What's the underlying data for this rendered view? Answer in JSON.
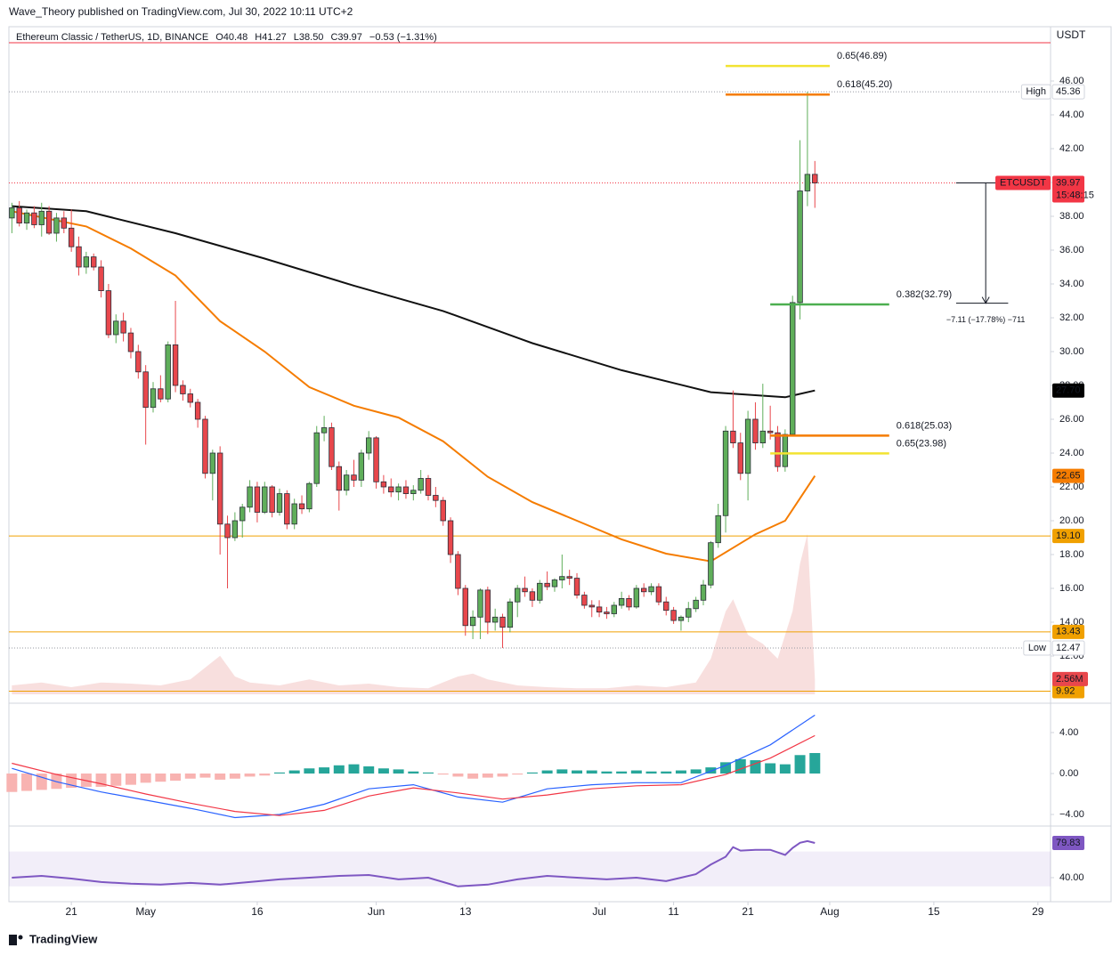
{
  "chart_data": {
    "type": "candlestick",
    "header": "Wave_Theory published on TradingView.com, Jul 30, 2022 10:11 UTC+2",
    "title": "Ethereum Classic / TetherUS, 1D, BINANCE",
    "ohlc_legend": [
      "O40.48",
      "H41.27",
      "L38.50",
      "C39.97",
      "−0.53 (−1.31%)"
    ],
    "currency": "USDT",
    "brand": "TradingView",
    "grid": false,
    "xlim": [
      -0.4,
      139.7
    ],
    "xticks": [
      {
        "value": 8,
        "label": "21"
      },
      {
        "value": 18,
        "label": "May"
      },
      {
        "value": 33,
        "label": "16"
      },
      {
        "value": 49,
        "label": "Jun"
      },
      {
        "value": 61,
        "label": "13"
      },
      {
        "value": 79,
        "label": "Jul"
      },
      {
        "value": 89,
        "label": "11"
      },
      {
        "value": 99,
        "label": "21"
      },
      {
        "value": 110,
        "label": "Aug"
      },
      {
        "value": 124,
        "label": "15"
      },
      {
        "value": 138,
        "label": "29"
      }
    ],
    "ylim": [
      9.21,
      49.21
    ],
    "yticks": [
      {
        "value": 12,
        "label": "12.00"
      },
      {
        "value": 14,
        "label": "14.00"
      },
      {
        "value": 16,
        "label": "16.00"
      },
      {
        "value": 18,
        "label": "18.00"
      },
      {
        "value": 20,
        "label": "20.00"
      },
      {
        "value": 22,
        "label": "22.00"
      },
      {
        "value": 24,
        "label": "24.00"
      },
      {
        "value": 26,
        "label": "26.00"
      },
      {
        "value": 28,
        "label": "28.00"
      },
      {
        "value": 30,
        "label": "30.00"
      },
      {
        "value": 32,
        "label": "32.00"
      },
      {
        "value": 34,
        "label": "34.00"
      },
      {
        "value": 36,
        "label": "36.00"
      },
      {
        "value": 38,
        "label": "38.00"
      },
      {
        "value": 40,
        "label": "40.00"
      },
      {
        "value": 42,
        "label": "42.00"
      },
      {
        "value": 44,
        "label": "44.00"
      },
      {
        "value": 46,
        "label": "46.00"
      }
    ],
    "up_color": "#5fae5a",
    "down_color": "#e8474c",
    "candles": [
      [
        37.9,
        38.8,
        37.0,
        38.5
      ],
      [
        38.5,
        38.9,
        37.4,
        37.6
      ],
      [
        37.6,
        38.4,
        37.2,
        38.2
      ],
      [
        38.2,
        38.6,
        37.3,
        37.5
      ],
      [
        37.5,
        38.8,
        36.8,
        38.3
      ],
      [
        38.3,
        38.6,
        36.9,
        37.0
      ],
      [
        37.0,
        38.2,
        36.5,
        37.9
      ],
      [
        37.9,
        38.3,
        37.0,
        37.3
      ],
      [
        37.3,
        38.4,
        35.9,
        36.2
      ],
      [
        36.2,
        36.8,
        34.5,
        35.0
      ],
      [
        35.0,
        35.9,
        34.6,
        35.6
      ],
      [
        35.6,
        35.8,
        34.8,
        35.0
      ],
      [
        35.0,
        35.4,
        33.2,
        33.6
      ],
      [
        33.6,
        34.0,
        30.8,
        31.0
      ],
      [
        31.0,
        32.2,
        30.5,
        31.8
      ],
      [
        31.8,
        32.3,
        30.6,
        31.1
      ],
      [
        31.1,
        31.4,
        29.6,
        30.0
      ],
      [
        30.0,
        30.4,
        28.4,
        28.8
      ],
      [
        28.8,
        29.2,
        24.5,
        26.7
      ],
      [
        26.7,
        28.2,
        26.4,
        27.8
      ],
      [
        27.8,
        28.6,
        27.0,
        27.2
      ],
      [
        27.2,
        30.6,
        27.0,
        30.4
      ],
      [
        30.4,
        33.0,
        27.6,
        28.0
      ],
      [
        28.0,
        28.3,
        27.1,
        27.5
      ],
      [
        27.5,
        27.8,
        26.7,
        27.0
      ],
      [
        27.0,
        27.2,
        25.5,
        26.0
      ],
      [
        26.0,
        26.2,
        22.5,
        22.8
      ],
      [
        22.8,
        24.2,
        21.2,
        24.0
      ],
      [
        24.0,
        24.4,
        18.0,
        19.8
      ],
      [
        19.8,
        20.3,
        16.0,
        19.0
      ],
      [
        19.0,
        20.5,
        18.8,
        20.0
      ],
      [
        20.0,
        21.0,
        19.0,
        20.8
      ],
      [
        20.8,
        22.4,
        20.5,
        22.0
      ],
      [
        22.0,
        22.3,
        19.9,
        20.5
      ],
      [
        20.5,
        22.3,
        20.4,
        22.0
      ],
      [
        22.0,
        22.1,
        20.2,
        20.5
      ],
      [
        20.5,
        21.9,
        20.3,
        21.6
      ],
      [
        21.6,
        21.8,
        19.5,
        19.8
      ],
      [
        19.8,
        21.3,
        19.5,
        21.0
      ],
      [
        21.0,
        21.5,
        20.4,
        20.7
      ],
      [
        20.7,
        22.3,
        20.5,
        22.2
      ],
      [
        22.2,
        25.6,
        22.0,
        25.2
      ],
      [
        25.2,
        26.2,
        24.7,
        25.5
      ],
      [
        25.5,
        25.8,
        23.0,
        23.2
      ],
      [
        23.2,
        23.5,
        20.6,
        21.8
      ],
      [
        21.8,
        23.0,
        21.5,
        22.7
      ],
      [
        22.7,
        23.6,
        22.0,
        22.4
      ],
      [
        22.4,
        24.2,
        22.0,
        24.0
      ],
      [
        24.0,
        25.3,
        23.6,
        24.9
      ],
      [
        24.9,
        25.0,
        21.9,
        22.3
      ],
      [
        22.3,
        22.7,
        21.6,
        22.0
      ],
      [
        22.0,
        22.5,
        21.4,
        21.7
      ],
      [
        21.7,
        22.2,
        21.2,
        22.0
      ],
      [
        22.0,
        22.4,
        21.3,
        21.6
      ],
      [
        21.6,
        22.1,
        21.2,
        21.8
      ],
      [
        21.8,
        23.0,
        21.6,
        22.5
      ],
      [
        22.5,
        22.7,
        21.2,
        21.5
      ],
      [
        21.5,
        22.0,
        20.8,
        21.2
      ],
      [
        21.2,
        21.4,
        19.7,
        20.0
      ],
      [
        20.0,
        20.2,
        17.5,
        18.0
      ],
      [
        18.0,
        18.2,
        15.6,
        16.0
      ],
      [
        16.0,
        16.2,
        13.2,
        13.8
      ],
      [
        13.8,
        14.7,
        13.0,
        14.3
      ],
      [
        14.3,
        16.0,
        13.0,
        15.9
      ],
      [
        15.9,
        16.1,
        13.3,
        14.0
      ],
      [
        14.0,
        14.8,
        13.5,
        14.3
      ],
      [
        14.3,
        14.5,
        12.47,
        13.7
      ],
      [
        13.7,
        15.4,
        13.4,
        15.2
      ],
      [
        15.2,
        16.2,
        14.3,
        16.0
      ],
      [
        16.0,
        16.7,
        15.5,
        15.8
      ],
      [
        15.8,
        16.0,
        14.9,
        15.3
      ],
      [
        15.3,
        16.5,
        15.1,
        16.3
      ],
      [
        16.3,
        17.0,
        15.9,
        16.1
      ],
      [
        16.1,
        16.6,
        15.8,
        16.5
      ],
      [
        16.5,
        18.0,
        16.0,
        16.7
      ],
      [
        16.7,
        17.1,
        16.2,
        16.6
      ],
      [
        16.6,
        16.9,
        15.4,
        15.6
      ],
      [
        15.6,
        15.8,
        14.8,
        15.0
      ],
      [
        15.0,
        15.3,
        14.3,
        14.9
      ],
      [
        14.9,
        15.3,
        14.3,
        14.6
      ],
      [
        14.6,
        14.9,
        14.2,
        14.5
      ],
      [
        14.5,
        15.2,
        14.3,
        15.0
      ],
      [
        15.0,
        15.8,
        14.8,
        15.4
      ],
      [
        15.4,
        15.6,
        14.7,
        14.9
      ],
      [
        14.9,
        16.2,
        14.8,
        16.0
      ],
      [
        16.0,
        16.3,
        15.5,
        15.8
      ],
      [
        15.8,
        16.3,
        15.6,
        16.1
      ],
      [
        16.1,
        16.3,
        15.0,
        15.2
      ],
      [
        15.2,
        15.5,
        14.4,
        14.7
      ],
      [
        14.7,
        14.9,
        13.9,
        14.1
      ],
      [
        14.1,
        14.4,
        13.5,
        14.3
      ],
      [
        14.3,
        15.2,
        14.0,
        14.8
      ],
      [
        14.8,
        15.5,
        14.6,
        15.3
      ],
      [
        15.3,
        16.5,
        15.0,
        16.2
      ],
      [
        16.2,
        18.8,
        16.0,
        18.7
      ],
      [
        18.7,
        21.0,
        18.4,
        20.3
      ],
      [
        20.3,
        25.6,
        19.3,
        25.3
      ],
      [
        25.3,
        27.7,
        24.3,
        24.6
      ],
      [
        24.6,
        25.2,
        22.4,
        22.8
      ],
      [
        22.8,
        26.5,
        21.2,
        26.0
      ],
      [
        26.0,
        27.0,
        24.2,
        24.6
      ],
      [
        24.6,
        28.1,
        24.3,
        25.3
      ],
      [
        25.3,
        26.8,
        24.8,
        25.2
      ],
      [
        25.2,
        25.6,
        22.9,
        23.2
      ],
      [
        23.2,
        25.4,
        22.9,
        25.1
      ],
      [
        25.1,
        33.3,
        25.0,
        32.9
      ],
      [
        32.9,
        42.5,
        31.9,
        39.5
      ],
      [
        39.5,
        45.36,
        38.6,
        40.48
      ],
      [
        40.48,
        41.27,
        38.5,
        39.97
      ]
    ],
    "moving_averages": [
      {
        "color": "#111111",
        "x": [
          0,
          10,
          22,
          34,
          46,
          58,
          70,
          82,
          94,
          104,
          108
        ],
        "values": [
          38.6,
          38.3,
          37.0,
          35.5,
          33.9,
          32.4,
          30.5,
          28.9,
          27.6,
          27.3,
          27.7
        ]
      },
      {
        "color": "#f57c00",
        "x": [
          0,
          10,
          16,
          22,
          28,
          34,
          40,
          46,
          52,
          58,
          64,
          70,
          76,
          82,
          88,
          94,
          100,
          104,
          108
        ],
        "values": [
          38.3,
          37.4,
          36.1,
          34.5,
          31.8,
          30.0,
          27.9,
          26.8,
          26.1,
          24.7,
          22.6,
          21.1,
          20.0,
          18.9,
          18.05,
          17.6,
          19.2,
          20.0,
          22.65
        ]
      }
    ],
    "volume": {
      "color": "#f3c9c8",
      "ylim": [
        0,
        30
      ],
      "last_label": "2.56M",
      "x": [
        0,
        4,
        8,
        12,
        16,
        20,
        24,
        26,
        28,
        30,
        32,
        36,
        40,
        44,
        48,
        52,
        56,
        60,
        62,
        64,
        68,
        72,
        76,
        80,
        84,
        88,
        92,
        94,
        96,
        97,
        99,
        101,
        103,
        105,
        106,
        107,
        108
      ],
      "values": [
        1.5,
        2.0,
        1.2,
        2.0,
        1.8,
        1.5,
        2.5,
        4.5,
        6.5,
        3.0,
        2.0,
        1.5,
        2.5,
        1.5,
        1.8,
        1.2,
        1.0,
        3.0,
        3.5,
        2.5,
        1.5,
        1.2,
        1.0,
        1.0,
        1.5,
        1.2,
        2.0,
        6.0,
        14.0,
        16.0,
        10.0,
        8.5,
        6.0,
        14.0,
        22.0,
        27.0,
        2.56
      ]
    },
    "alert_line": {
      "value": 48.26,
      "color": "#f23645"
    },
    "badges": [
      {
        "value": 45.36,
        "label": "45.36",
        "tag": "High",
        "bg": "#ffffff",
        "fg": "#131722",
        "line": "dotted"
      },
      {
        "value": 39.97,
        "label": "39.97",
        "tag": "ETCUSDT",
        "sub": "15:48:15",
        "bg": "#f23645",
        "fg": "#ffffff",
        "line": "dotted"
      },
      {
        "value": 27.7,
        "label": "27.70",
        "bg": "#000000",
        "fg": "#ffffff"
      },
      {
        "value": 22.65,
        "label": "22.65",
        "bg": "#f57c00",
        "fg": "#ffffff"
      },
      {
        "value": 19.1,
        "label": "19.10",
        "bg": "#f0a000",
        "fg": "#131722",
        "line": "solid"
      },
      {
        "value": 13.43,
        "label": "13.43",
        "bg": "#f0a000",
        "fg": "#131722",
        "line": "solid"
      },
      {
        "value": 12.47,
        "label": "12.47",
        "tag": "Low",
        "bg": "#ffffff",
        "fg": "#131722",
        "line": "dotted"
      },
      {
        "value": 9.92,
        "label": "9.92",
        "bg": "#f0a000",
        "fg": "#131722",
        "line": "solid"
      }
    ],
    "fibs": [
      {
        "label": "0.65(46.89)",
        "value": 46.89,
        "x0": 96,
        "x1": 110,
        "color": "#f2e332"
      },
      {
        "label": "0.618(45.20)",
        "value": 45.2,
        "x0": 96,
        "x1": 110,
        "color": "#f57c00"
      },
      {
        "label": "0.382(32.79)",
        "value": 32.79,
        "x0": 102,
        "x1": 118,
        "color": "#4caf50"
      },
      {
        "label": "0.618(25.03)",
        "value": 25.03,
        "x0": 102,
        "x1": 118,
        "color": "#f57c00"
      },
      {
        "label": "0.65(23.98)",
        "value": 23.98,
        "x0": 102,
        "x1": 118,
        "color": "#f2e332"
      }
    ],
    "measure": {
      "label": "−7.11 (−17.78%) −711",
      "from": 39.97,
      "to": 32.86,
      "x0": 127,
      "x1": 134
    },
    "macd": {
      "ylim": [
        -5.13,
        6.78
      ],
      "yticks": [
        {
          "value": -4,
          "label": "−4.00"
        },
        {
          "value": 0,
          "label": "0.00"
        },
        {
          "value": 4,
          "label": "4.00"
        }
      ],
      "up_color": "#26a69a",
      "down_color": "#f8b3b1",
      "histogram": {
        "x": [
          0,
          2,
          4,
          6,
          8,
          10,
          12,
          14,
          16,
          18,
          20,
          22,
          24,
          26,
          28,
          30,
          32,
          34,
          36,
          38,
          40,
          42,
          44,
          46,
          48,
          50,
          52,
          54,
          56,
          58,
          60,
          62,
          64,
          66,
          68,
          70,
          72,
          74,
          76,
          78,
          80,
          82,
          84,
          86,
          88,
          90,
          92,
          94,
          96,
          98,
          100,
          102,
          104,
          106,
          108
        ],
        "values": [
          -1.8,
          -1.7,
          -1.6,
          -1.5,
          -1.4,
          -1.3,
          -1.3,
          -1.2,
          -1.1,
          -0.9,
          -0.8,
          -0.7,
          -0.5,
          -0.4,
          -0.6,
          -0.5,
          -0.3,
          -0.2,
          0.1,
          0.3,
          0.5,
          0.6,
          0.8,
          0.9,
          0.7,
          0.5,
          0.4,
          0.2,
          0.1,
          -0.1,
          -0.3,
          -0.5,
          -0.4,
          -0.3,
          -0.1,
          0.1,
          0.3,
          0.4,
          0.3,
          0.3,
          0.2,
          0.2,
          0.3,
          0.2,
          0.2,
          0.3,
          0.4,
          0.6,
          1.1,
          1.4,
          1.3,
          1.0,
          0.9,
          1.8,
          2.0
        ]
      },
      "lines": [
        {
          "color": "#2962ff",
          "x": [
            0,
            6,
            12,
            18,
            24,
            30,
            36,
            42,
            48,
            54,
            60,
            66,
            72,
            78,
            84,
            90,
            96,
            102,
            108
          ],
          "values": [
            0.5,
            -0.8,
            -1.8,
            -2.6,
            -3.4,
            -4.3,
            -4.0,
            -3.0,
            -1.5,
            -1.1,
            -2.3,
            -2.8,
            -1.5,
            -1.1,
            -0.9,
            -0.9,
            0.8,
            2.8,
            5.7
          ]
        },
        {
          "color": "#f23645",
          "x": [
            0,
            6,
            12,
            18,
            24,
            30,
            36,
            42,
            48,
            54,
            60,
            66,
            72,
            78,
            84,
            90,
            96,
            102,
            108
          ],
          "values": [
            1.0,
            -0.1,
            -1.0,
            -2.0,
            -2.9,
            -3.7,
            -4.1,
            -3.6,
            -2.2,
            -1.4,
            -1.9,
            -2.5,
            -2.1,
            -1.5,
            -1.2,
            -1.1,
            -0.1,
            1.5,
            3.7
          ]
        }
      ]
    },
    "rsi": {
      "ylim": [
        12.4,
        98.2
      ],
      "yticks": [
        {
          "value": 40,
          "label": "40.00"
        }
      ],
      "band": [
        30,
        70
      ],
      "color": "#7e57c2",
      "x": [
        0,
        4,
        8,
        12,
        16,
        20,
        24,
        28,
        32,
        36,
        40,
        44,
        48,
        52,
        56,
        60,
        64,
        68,
        72,
        76,
        80,
        84,
        88,
        92,
        94,
        96,
        97,
        98,
        100,
        102,
        104,
        105,
        106,
        107,
        108
      ],
      "values": [
        40,
        42,
        39,
        35,
        33,
        32,
        34,
        32,
        35,
        38,
        40,
        42,
        43,
        38,
        40,
        30,
        32,
        38,
        42,
        40,
        38,
        40,
        36,
        44,
        55,
        64,
        75,
        71,
        72,
        72,
        66,
        74,
        80,
        82,
        79.83
      ]
    }
  }
}
